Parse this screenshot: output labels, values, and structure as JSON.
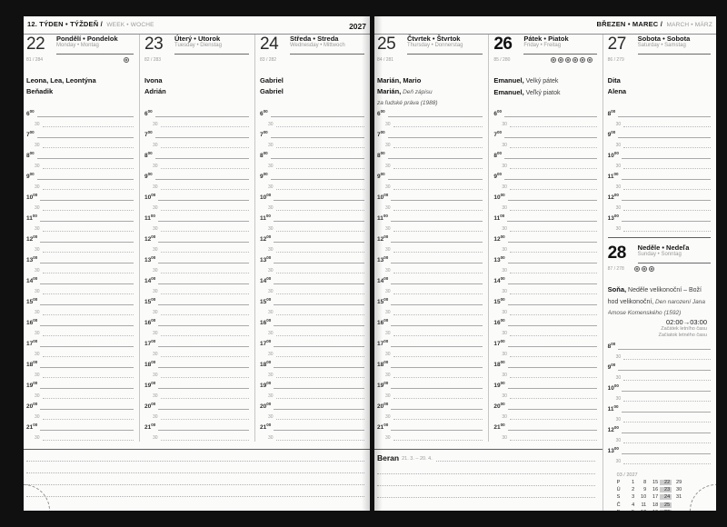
{
  "page_header": {
    "week_label": "12. TÝDEN • TÝŽDEŇ /",
    "week_label_en": "WEEK • WOCHE",
    "year": "2027",
    "month_label": "BŘEZEN • MAREC /",
    "month_label_en": "MARCH • MÄRZ"
  },
  "time_grid": {
    "sup": "00",
    "half": "30",
    "weekday_hours": [
      "6",
      "7",
      "8",
      "9",
      "10",
      "11",
      "12",
      "13",
      "14",
      "15",
      "16",
      "17",
      "18",
      "19",
      "20",
      "21"
    ],
    "weekend_hours": [
      "8",
      "9",
      "10",
      "11",
      "12",
      "13"
    ]
  },
  "days": [
    {
      "number": "22",
      "holiday": false,
      "name_local": "Pondělí • Pondelok",
      "name_intl": "Monday • Montag",
      "day_of_year": "81 / 284",
      "icon": "moon-phase-icon",
      "icon_count": 1,
      "icons_align": "right",
      "hours": "weekday",
      "name_day_lines": [
        [
          [
            "b",
            "Leona, Lea, Leontýna"
          ]
        ],
        [
          [
            "b",
            "Beňadik"
          ]
        ]
      ]
    },
    {
      "number": "23",
      "holiday": false,
      "name_local": "Úterý • Utorok",
      "name_intl": "Tuesday • Dienstag",
      "day_of_year": "82 / 283",
      "icon_count": 0,
      "hours": "weekday",
      "name_day_lines": [
        [
          [
            "b",
            "Ivona"
          ]
        ],
        [
          [
            "b",
            "Adrián"
          ]
        ]
      ]
    },
    {
      "number": "24",
      "holiday": false,
      "name_local": "Středa • Streda",
      "name_intl": "Wednesday • Mittwoch",
      "day_of_year": "83 / 282",
      "icon_count": 0,
      "hours": "weekday",
      "name_day_lines": [
        [
          [
            "b",
            "Gabriel"
          ]
        ],
        [
          [
            "b",
            "Gabriel"
          ]
        ]
      ]
    },
    {
      "number": "25",
      "holiday": false,
      "name_local": "Čtvrtek • Štvrtok",
      "name_intl": "Thursday • Donnerstag",
      "day_of_year": "84 / 281",
      "icon_count": 0,
      "hours": "weekday",
      "name_day_lines": [
        [
          [
            "b",
            "Marián, Mario"
          ]
        ],
        [
          [
            "b",
            "Marián,"
          ],
          [
            "i",
            " Deň zápisu"
          ]
        ],
        [
          [
            "i",
            "za ľudské práva (1988)"
          ]
        ]
      ]
    },
    {
      "number": "26",
      "holiday": true,
      "name_local": "Pátek • Piatok",
      "name_intl": "Friday • Freitag",
      "day_of_year": "85 / 280",
      "icon": "moon-phase-icon",
      "icon_count": 6,
      "icons_align": "right",
      "hours": "weekday",
      "name_day_lines": [
        [
          [
            "b",
            "Emanuel,"
          ],
          [
            "r",
            " Velký pátek"
          ]
        ],
        [
          [
            "b",
            "Emanuel,"
          ],
          [
            "r",
            " Veľký piatok"
          ]
        ]
      ]
    },
    {
      "number": "27",
      "holiday": false,
      "name_local": "Sobota • Sobota",
      "name_intl": "Saturday • Samstag",
      "day_of_year": "86 / 279",
      "icon_count": 0,
      "hours": "weekend",
      "name_day_lines": [
        [
          [
            "b",
            "Dita"
          ]
        ],
        [
          [
            "b",
            "Alena"
          ]
        ]
      ]
    },
    {
      "number": "28",
      "holiday": true,
      "name_local": "Neděle • Nedeľa",
      "name_intl": "Sunday • Sonntag",
      "day_of_year": "87 / 278",
      "icon": "moon-phase-icon",
      "icon_count": 3,
      "icons_align": "left",
      "hours": "weekend",
      "name_day_lines": [
        [
          [
            "b",
            "Soňa,"
          ],
          [
            "r",
            " Neděle velikonoční – Boží"
          ]
        ],
        [
          [
            "r",
            "hod velikonoční,"
          ],
          [
            "i",
            " Den narození Jana"
          ]
        ],
        [
          [
            "i",
            "Amose Komenského (1592)"
          ]
        ],
        [
          [
            "b",
            "Soňa,"
          ],
          [
            "r",
            " Veľkonočná nedeľa"
          ]
        ]
      ]
    }
  ],
  "daylight_saving": {
    "time": "02:00→03:00",
    "note_cs": "Začátek letního času",
    "note_sk": "Začiatok letného času"
  },
  "zodiac": {
    "name": "Beran",
    "range": "21. 3. – 20. 4."
  },
  "notes": {
    "left_lines": 4,
    "right_lines": 3
  },
  "mini_calendar": {
    "title": "03 / 2027",
    "highlight_col": 3,
    "rows": [
      {
        "label": "P",
        "style": "normal",
        "days": [
          "1",
          "8",
          "15",
          "22",
          "29"
        ]
      },
      {
        "label": "Ú",
        "style": "normal",
        "days": [
          "2",
          "9",
          "16",
          "23",
          "30"
        ]
      },
      {
        "label": "S",
        "style": "normal",
        "days": [
          "3",
          "10",
          "17",
          "24",
          "31"
        ]
      },
      {
        "label": "Č",
        "style": "normal",
        "days": [
          "4",
          "11",
          "18",
          "25",
          ""
        ]
      },
      {
        "label": "P",
        "style": "normal",
        "days": [
          "5",
          "12",
          "19",
          "26",
          ""
        ]
      },
      {
        "label": "S",
        "style": "muted",
        "days": [
          "6",
          "13",
          "20",
          "27",
          ""
        ]
      },
      {
        "label": "N",
        "style": "strong",
        "days": [
          "7",
          "14",
          "21",
          "28",
          ""
        ]
      }
    ]
  }
}
